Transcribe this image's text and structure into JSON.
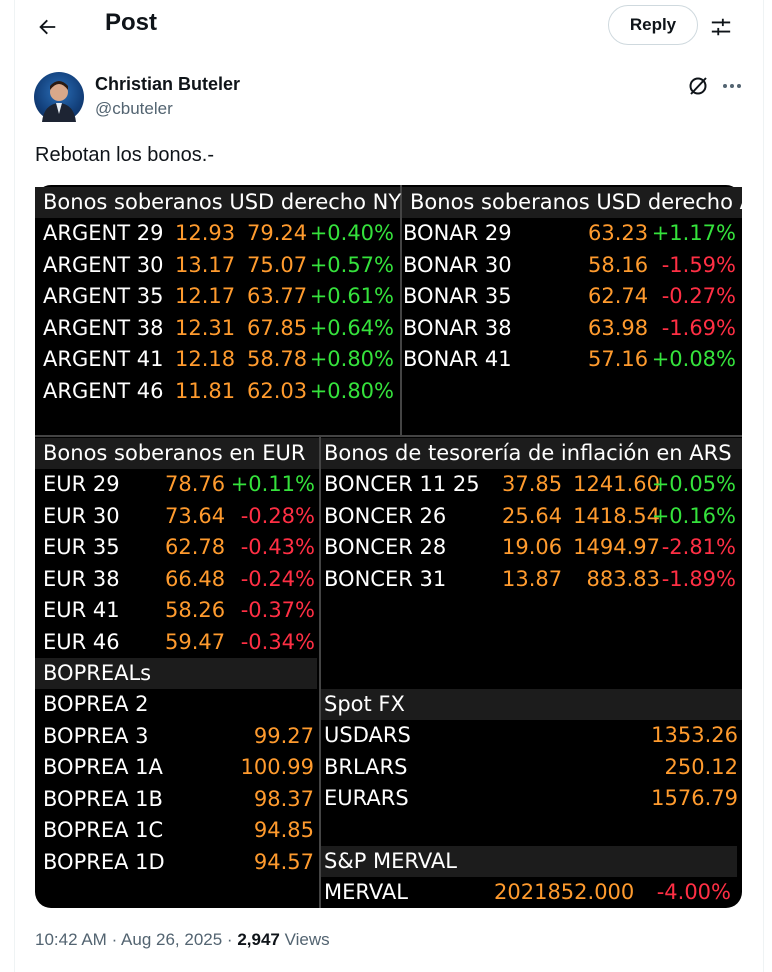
{
  "header": {
    "title": "Post",
    "reply_label": "Reply"
  },
  "author": {
    "name": "Christian Buteler",
    "handle": "@cbuteler"
  },
  "tweet": {
    "text": "Rebotan los bonos.-"
  },
  "terminal": {
    "ny": {
      "title": "Bonos soberanos USD derecho NY",
      "rows": [
        {
          "name": "ARGENT 29",
          "yield": "12.93",
          "price": "79.24",
          "chg": "+0.40%"
        },
        {
          "name": "ARGENT 30",
          "yield": "13.17",
          "price": "75.07",
          "chg": "+0.57%"
        },
        {
          "name": "ARGENT 35",
          "yield": "12.17",
          "price": "63.77",
          "chg": "+0.61%"
        },
        {
          "name": "ARGENT 38",
          "yield": "12.31",
          "price": "67.85",
          "chg": "+0.64%"
        },
        {
          "name": "ARGENT 41",
          "yield": "12.18",
          "price": "58.78",
          "chg": "+0.80%"
        },
        {
          "name": "ARGENT 46",
          "yield": "11.81",
          "price": "62.03",
          "chg": "+0.80%"
        }
      ]
    },
    "arg": {
      "title": "Bonos soberanos USD derecho A",
      "rows": [
        {
          "name": "BONAR 29",
          "price": "63.23",
          "chg": "+1.17%"
        },
        {
          "name": "BONAR 30",
          "price": "58.16",
          "chg": "-1.59%"
        },
        {
          "name": "BONAR 35",
          "price": "62.74",
          "chg": "-0.27%"
        },
        {
          "name": "BONAR 38",
          "price": "63.98",
          "chg": "-1.69%"
        },
        {
          "name": "BONAR 41",
          "price": "57.16",
          "chg": "+0.08%"
        }
      ]
    },
    "eur": {
      "title": "Bonos soberanos en EUR",
      "rows": [
        {
          "name": "EUR 29",
          "price": "78.76",
          "chg": "+0.11%"
        },
        {
          "name": "EUR 30",
          "price": "73.64",
          "chg": "-0.28%"
        },
        {
          "name": "EUR 35",
          "price": "62.78",
          "chg": "-0.43%"
        },
        {
          "name": "EUR 38",
          "price": "66.48",
          "chg": "-0.24%"
        },
        {
          "name": "EUR 41",
          "price": "58.26",
          "chg": "-0.37%"
        },
        {
          "name": "EUR 46",
          "price": "59.47",
          "chg": "-0.34%"
        }
      ]
    },
    "boncer": {
      "title": "Bonos de tesorería de inflación en ARS",
      "rows": [
        {
          "name": "BONCER 11 25",
          "yield": "37.85",
          "price": "1241.60",
          "chg": "+0.05%"
        },
        {
          "name": "BONCER 26",
          "yield": "25.64",
          "price": "1418.54",
          "chg": "+0.16%"
        },
        {
          "name": "BONCER 28",
          "yield": "19.06",
          "price": "1494.97",
          "chg": "-2.81%"
        },
        {
          "name": "BONCER 31",
          "yield": "13.87",
          "price": "883.83",
          "chg": "-1.89%"
        }
      ]
    },
    "bopreal": {
      "title": "BOPREALs",
      "rows": [
        {
          "name": "BOPREA 2",
          "price": ""
        },
        {
          "name": "BOPREA 3",
          "price": "99.27"
        },
        {
          "name": "BOPREA 1A",
          "price": "100.99"
        },
        {
          "name": "BOPREA 1B",
          "price": "98.37"
        },
        {
          "name": "BOPREA 1C",
          "price": "94.85"
        },
        {
          "name": "BOPREA 1D",
          "price": "94.57"
        }
      ]
    },
    "fx": {
      "title": "Spot FX",
      "rows": [
        {
          "name": "USDARS",
          "price": "1353.26"
        },
        {
          "name": "BRLARS",
          "price": "250.12"
        },
        {
          "name": "EURARS",
          "price": "1576.79"
        }
      ]
    },
    "merval": {
      "title": "S&P MERVAL",
      "name": "MERVAL",
      "value": "2021852.000",
      "chg": "-4.00%"
    }
  },
  "footer": {
    "time": "10:42 AM",
    "date": "Aug 26, 2025",
    "views_count": "2,947",
    "views_label": "Views",
    "sep": "·"
  },
  "colors": {
    "positive": "#35e23c",
    "negative": "#ff2f44",
    "value": "#ff9b2e"
  }
}
